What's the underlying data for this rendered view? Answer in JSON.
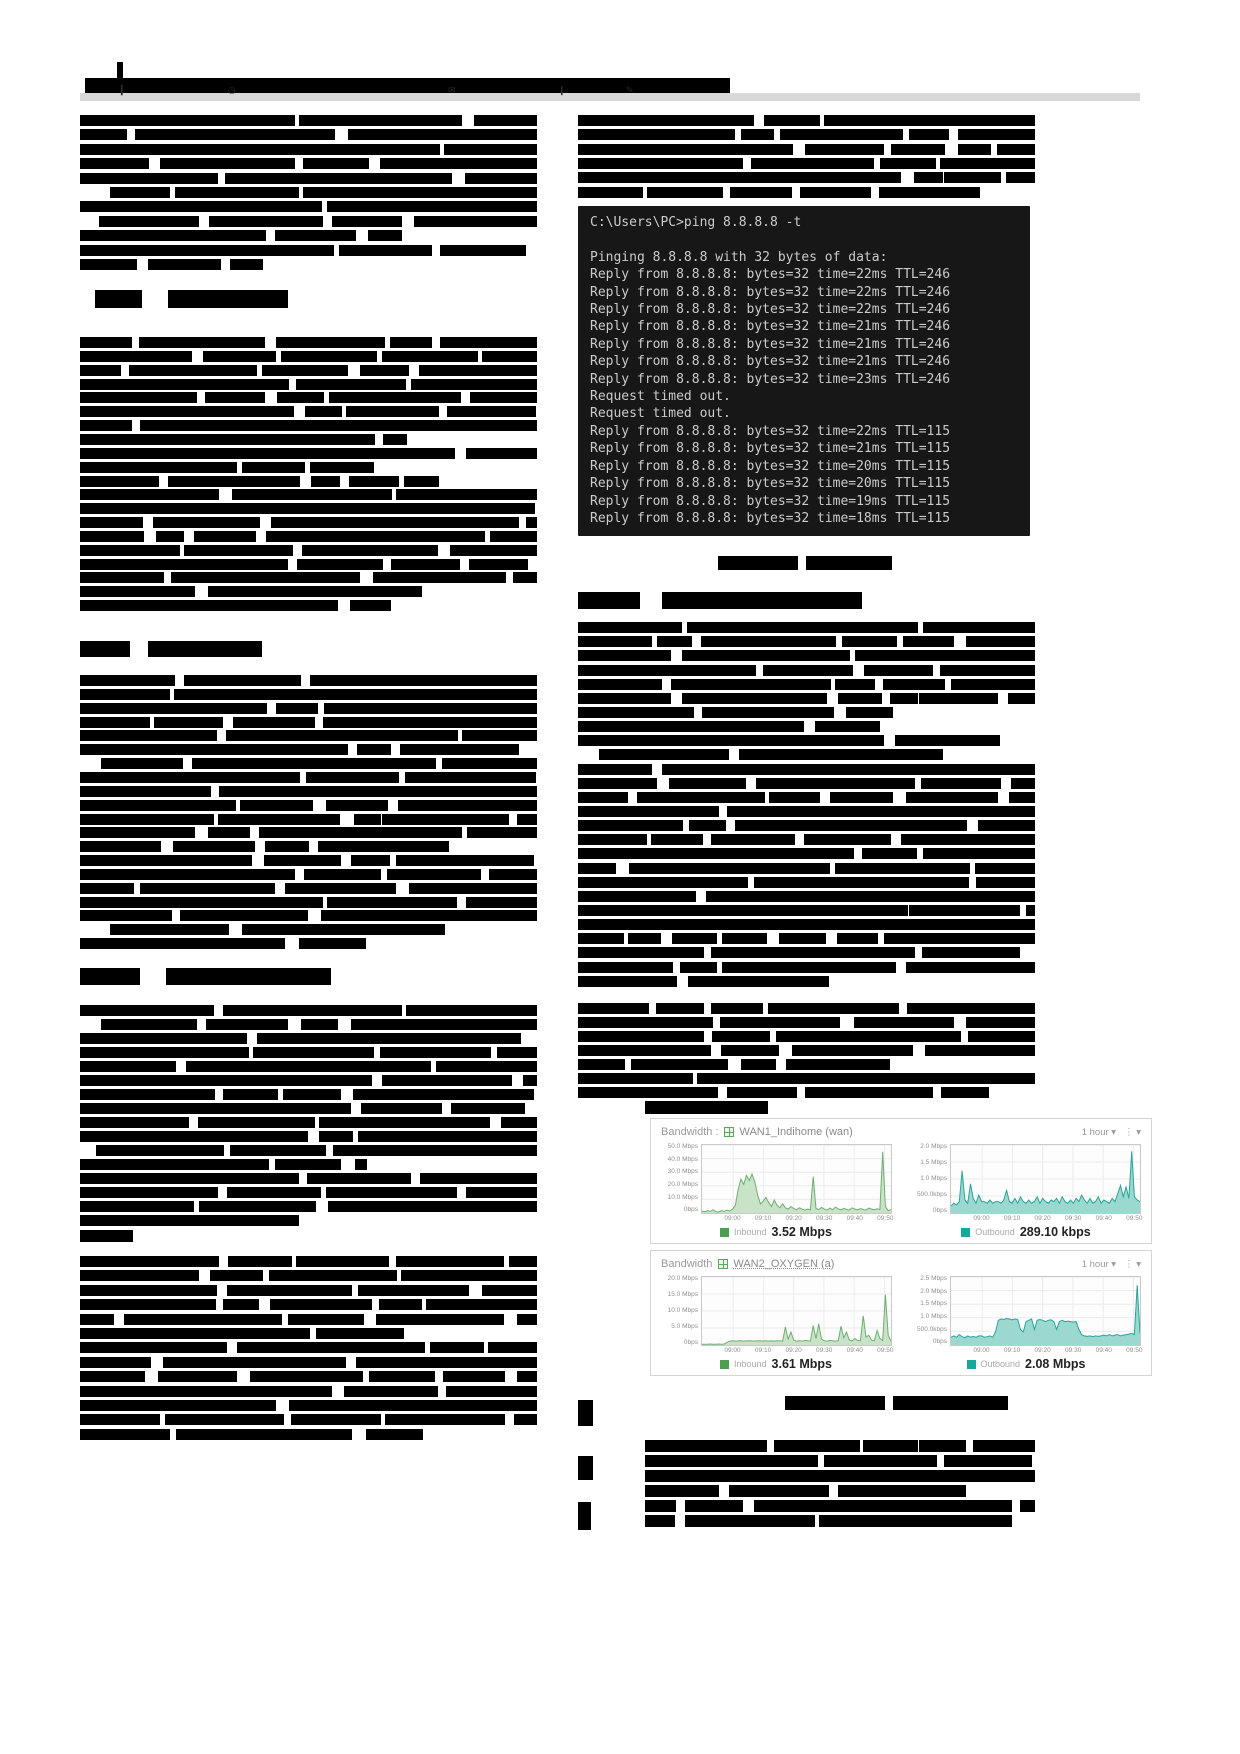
{
  "toolbar": {
    "icons": [
      "cursor-icon",
      "clock-icon",
      "envelope-icon",
      "bookmark-icon",
      "pencil-icon"
    ],
    "glyphs": [
      "▎",
      "◷",
      "✉",
      "❙",
      "✎"
    ]
  },
  "terminal": {
    "lines": [
      "C:\\Users\\PC>ping 8.8.8.8 -t",
      "",
      "Pinging 8.8.8.8 with 32 bytes of data:",
      "Reply from 8.8.8.8: bytes=32 time=22ms TTL=246",
      "Reply from 8.8.8.8: bytes=32 time=22ms TTL=246",
      "Reply from 8.8.8.8: bytes=32 time=22ms TTL=246",
      "Reply from 8.8.8.8: bytes=32 time=21ms TTL=246",
      "Reply from 8.8.8.8: bytes=32 time=21ms TTL=246",
      "Reply from 8.8.8.8: bytes=32 time=21ms TTL=246",
      "Reply from 8.8.8.8: bytes=32 time=23ms TTL=246",
      "Request timed out.",
      "Request timed out.",
      "Reply from 8.8.8.8: bytes=32 time=22ms TTL=115",
      "Reply from 8.8.8.8: bytes=32 time=21ms TTL=115",
      "Reply from 8.8.8.8: bytes=32 time=20ms TTL=115",
      "Reply from 8.8.8.8: bytes=32 time=20ms TTL=115",
      "Reply from 8.8.8.8: bytes=32 time=19ms TTL=115",
      "Reply from 8.8.8.8: bytes=32 time=18ms TTL=115"
    ]
  },
  "widgets": [
    {
      "header_label": "Bandwidth :",
      "interface": "WAN1_Indihome (wan)",
      "range_label": "1 hour",
      "legends": [
        {
          "label": "Inbound",
          "value": "3.52 Mbps",
          "color": "#4d9e50"
        },
        {
          "label": "Outbound",
          "value": "289.10 kbps",
          "color": "#17a79b"
        }
      ]
    },
    {
      "header_label": "Bandwidth",
      "interface": "WAN2_OXYGEN (a)",
      "range_label": "1 hour",
      "legends": [
        {
          "label": "Inbound",
          "value": "3.61 Mbps",
          "color": "#4d9e50"
        },
        {
          "label": "Outbound",
          "value": "2.08 Mbps",
          "color": "#17a79b"
        }
      ]
    }
  ],
  "chart_data": [
    {
      "type": "area",
      "title": "WAN1_Indihome (wan) Inbound",
      "x_ticks": [
        "09:00",
        "09:10",
        "09:20",
        "09:30",
        "09:40",
        "09:50"
      ],
      "x_positions": [
        0.165,
        0.325,
        0.485,
        0.645,
        0.805,
        0.965
      ],
      "y_ticks": [
        "0bps",
        "10.0 Mbps",
        "20.0 Mbps",
        "30.0 Mbps",
        "40.0 Mbps",
        "50.0 Mbps"
      ],
      "ylim": [
        0,
        50
      ],
      "unit": "Mbps",
      "fill": "#c9e3c9",
      "stroke": "#6fae72",
      "values": [
        1.5,
        0.9,
        1.8,
        1.2,
        2.5,
        1.1,
        0.8,
        1.9,
        1.3,
        2.2,
        1.5,
        3.0,
        6,
        18,
        26,
        22,
        29,
        25,
        30,
        24,
        14,
        7,
        9,
        12,
        8,
        5,
        10,
        6,
        4,
        7,
        4,
        3,
        5,
        3.5,
        2.5,
        4,
        3,
        2.2,
        3.1,
        2.4,
        28,
        3.5,
        2.6,
        4.2,
        3.0,
        2.2,
        3.8,
        2.5,
        4.5,
        3.2,
        2.4,
        3.6,
        2.8,
        2.2,
        4.0,
        3.0,
        2.5,
        3.4,
        2.7,
        2.2,
        3.8,
        3.0,
        2.4,
        3.2,
        2.6,
        47,
        5,
        1.8,
        2.6
      ]
    },
    {
      "type": "area",
      "title": "WAN1_Indihome (wan) Outbound",
      "x_ticks": [
        "09:00",
        "09:10",
        "09:20",
        "09:30",
        "09:40",
        "09:50"
      ],
      "x_positions": [
        0.165,
        0.325,
        0.485,
        0.645,
        0.805,
        0.965
      ],
      "y_ticks": [
        "0bps",
        "500.0kbps",
        "1.0 Mbps",
        "1.5 Mbps",
        "2.0 Mbps"
      ],
      "ylim": [
        0,
        2
      ],
      "unit": "Mbps",
      "fill": "#9bd8cf",
      "stroke": "#27a59a",
      "values": [
        0.22,
        0.3,
        0.25,
        0.35,
        1.3,
        0.4,
        0.3,
        0.9,
        0.45,
        0.3,
        0.55,
        0.35,
        0.35,
        0.3,
        0.4,
        0.3,
        0.35,
        0.35,
        0.3,
        0.4,
        0.7,
        0.35,
        0.3,
        0.45,
        0.3,
        0.5,
        0.35,
        0.3,
        0.4,
        0.3,
        0.35,
        0.5,
        0.3,
        0.45,
        0.35,
        0.3,
        0.4,
        0.35,
        0.45,
        0.3,
        0.5,
        0.35,
        0.3,
        0.4,
        0.3,
        0.45,
        0.35,
        0.55,
        0.4,
        0.3,
        0.45,
        0.3,
        0.35,
        0.5,
        0.3,
        0.4,
        0.35,
        0.3,
        0.45,
        0.35,
        0.6,
        0.85,
        0.5,
        0.8,
        0.45,
        1.9,
        0.5,
        0.4,
        0.35
      ]
    },
    {
      "type": "area",
      "title": "WAN2_OXYGEN (a) Inbound",
      "x_ticks": [
        "09:00",
        "09:10",
        "09:20",
        "09:30",
        "09:40",
        "09:50"
      ],
      "x_positions": [
        0.165,
        0.325,
        0.485,
        0.645,
        0.805,
        0.965
      ],
      "y_ticks": [
        "0bps",
        "5.0 Mbps",
        "10.0 Mbps",
        "15.0 Mbps",
        "20.0 Mbps"
      ],
      "ylim": [
        0,
        20
      ],
      "unit": "Mbps",
      "fill": "#c9e3c9",
      "stroke": "#6fae72",
      "values": [
        0.2,
        0.25,
        0.2,
        0.3,
        0.25,
        0.2,
        0.3,
        0.25,
        0.3,
        0.8,
        1.2,
        1.3,
        1.2,
        1.25,
        1.3,
        1.2,
        1.25,
        1.3,
        1.25,
        1.2,
        1.3,
        1.25,
        1.2,
        1.3,
        1.2,
        1.25,
        1.2,
        1.3,
        1.25,
        1.2,
        5.5,
        1.8,
        4.0,
        1.5,
        1.2,
        1.3,
        1.2,
        1.4,
        1.3,
        1.2,
        6.0,
        2.0,
        6.5,
        1.8,
        1.3,
        1.2,
        1.4,
        1.3,
        1.2,
        1.3,
        5.8,
        2.2,
        4.0,
        1.5,
        1.3,
        2.0,
        1.4,
        1.3,
        9.0,
        2.5,
        3.0,
        1.5,
        1.3,
        4.5,
        2.0,
        1.4,
        15.5,
        3.0,
        1.2
      ]
    },
    {
      "type": "area",
      "title": "WAN2_OXYGEN (a) Outbound",
      "x_ticks": [
        "09:00",
        "09:10",
        "09:20",
        "09:30",
        "09:40",
        "09:50"
      ],
      "x_positions": [
        0.165,
        0.325,
        0.485,
        0.645,
        0.805,
        0.965
      ],
      "y_ticks": [
        "0bps",
        "500.0kbps",
        "1.0 Mbps",
        "1.5 Mbps",
        "2.0 Mbps",
        "2.5 Mbps"
      ],
      "ylim": [
        0,
        2.5
      ],
      "unit": "Mbps",
      "fill": "#9bd8cf",
      "stroke": "#27a59a",
      "values": [
        0.3,
        0.35,
        0.3,
        0.4,
        0.32,
        0.28,
        0.35,
        0.3,
        0.33,
        0.3,
        0.35,
        0.35,
        0.3,
        0.32,
        0.35,
        0.3,
        0.5,
        0.95,
        1.0,
        0.98,
        1.02,
        1.0,
        0.97,
        1.0,
        0.98,
        0.6,
        0.5,
        0.9,
        0.95,
        1.0,
        0.6,
        0.95,
        0.98,
        0.95,
        0.9,
        0.95,
        0.97,
        0.9,
        0.6,
        0.9,
        0.95,
        0.9,
        0.92,
        0.9,
        0.88,
        0.9,
        0.6,
        0.4,
        0.35,
        0.33,
        0.35,
        0.32,
        0.35,
        0.33,
        0.35,
        0.38,
        0.35,
        0.4,
        0.35,
        0.38,
        0.4,
        0.35,
        0.38,
        0.4,
        0.42,
        0.45,
        0.4,
        2.3,
        0.45
      ]
    }
  ]
}
